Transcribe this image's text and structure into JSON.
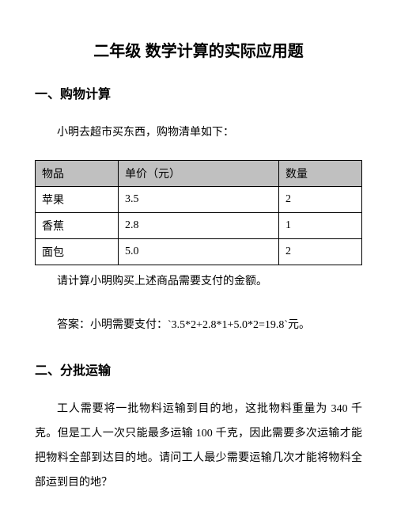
{
  "title": "二年级 数学计算的实际应用题",
  "section1": {
    "heading": "一、购物计算",
    "intro": "小明去超市买东西，购物清单如下：",
    "table": {
      "headers": [
        "物品",
        "单价（元）",
        "数量"
      ],
      "rows": [
        [
          "苹果",
          "3.5",
          "2"
        ],
        [
          "香蕉",
          "2.8",
          "1"
        ],
        [
          "面包",
          "5.0",
          "2"
        ]
      ]
    },
    "question": "请计算小明购买上述商品需要支付的金额。",
    "answer": "答案：小明需要支付：`3.5*2+2.8*1+5.0*2=19.8`元。"
  },
  "section2": {
    "heading": "二、分批运输",
    "paragraph": "工人需要将一批物料运输到目的地，这批物料重量为 340 千克。但是工人一次只能最多运输 100 千克，因此需要多次运输才能把物料全部到达目的地。请问工人最少需要运输几次才能将物料全部运到目的地？"
  }
}
